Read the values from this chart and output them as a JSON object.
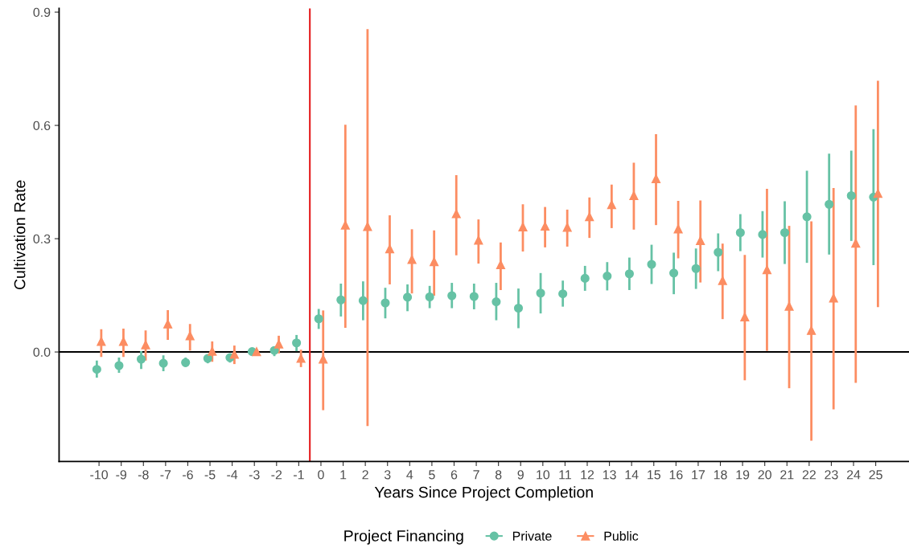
{
  "chart_data": {
    "type": "scatter",
    "xlabel": "Years Since Project Completion",
    "ylabel": "Cultivation Rate",
    "legend_title": "Project Financing",
    "legend": "bottom",
    "grid": false,
    "xlim": [
      -11.8,
      26.5
    ],
    "xticks": [
      -10,
      -9,
      -8,
      -7,
      -6,
      -5,
      -4,
      -3,
      -2,
      -1,
      0,
      1,
      2,
      3,
      4,
      5,
      6,
      7,
      8,
      9,
      10,
      11,
      12,
      13,
      14,
      15,
      16,
      17,
      18,
      19,
      20,
      21,
      22,
      23,
      24,
      25
    ],
    "ylim": [
      -0.29,
      0.91
    ],
    "yticks": [
      {
        "value": 0,
        "label": "0.0"
      },
      0.3,
      0.6,
      0.9
    ],
    "ref_lines": [
      {
        "axis": "y",
        "value": 0,
        "color": "#000000"
      },
      {
        "axis": "x",
        "value": -0.5,
        "color": "#e41a1c"
      }
    ],
    "series": [
      {
        "name": "Private",
        "color": "#66c2a5",
        "marker": "circle",
        "x": [
          -10.1,
          -9.1,
          -8.1,
          -7.1,
          -6.1,
          -5.1,
          -4.1,
          -3.1,
          -2.1,
          -1.1,
          -0.1,
          0.9,
          1.9,
          2.9,
          3.9,
          4.9,
          5.9,
          6.9,
          7.9,
          8.9,
          9.9,
          10.9,
          11.9,
          12.9,
          13.9,
          14.9,
          15.9,
          16.9,
          17.9,
          18.9,
          19.9,
          20.9,
          21.9,
          22.9,
          23.9,
          24.9
        ],
        "values": [
          -0.046,
          -0.036,
          -0.019,
          -0.03,
          -0.028,
          -0.017,
          -0.015,
          0.001,
          0.004,
          0.024,
          0.088,
          0.138,
          0.136,
          0.13,
          0.145,
          0.146,
          0.149,
          0.147,
          0.133,
          0.116,
          0.156,
          0.154,
          0.195,
          0.201,
          0.207,
          0.232,
          0.209,
          0.221,
          0.264,
          0.316,
          0.311,
          0.316,
          0.358,
          0.391,
          0.414,
          0.41
        ],
        "errors": [
          [
            -0.068,
            -0.023
          ],
          [
            -0.055,
            -0.015
          ],
          [
            -0.045,
            0.002
          ],
          [
            -0.051,
            -0.009
          ],
          [
            -0.04,
            -0.015
          ],
          [
            -0.03,
            -0.006
          ],
          [
            -0.028,
            -0.004
          ],
          null,
          [
            -0.011,
            0.015
          ],
          [
            0.002,
            0.045
          ],
          [
            0.061,
            0.114
          ],
          [
            0.094,
            0.181
          ],
          [
            0.084,
            0.187
          ],
          [
            0.089,
            0.17
          ],
          [
            0.108,
            0.179
          ],
          [
            0.116,
            0.175
          ],
          [
            0.116,
            0.183
          ],
          [
            0.113,
            0.181
          ],
          [
            0.084,
            0.183
          ],
          [
            0.063,
            0.168
          ],
          [
            0.102,
            0.209
          ],
          [
            0.12,
            0.189
          ],
          [
            0.162,
            0.228
          ],
          [
            0.163,
            0.238
          ],
          [
            0.164,
            0.25
          ],
          [
            0.18,
            0.284
          ],
          [
            0.153,
            0.263
          ],
          [
            0.167,
            0.274
          ],
          [
            0.214,
            0.314
          ],
          [
            0.267,
            0.365
          ],
          [
            0.25,
            0.373
          ],
          [
            0.233,
            0.399
          ],
          [
            0.236,
            0.48
          ],
          [
            0.258,
            0.525
          ],
          [
            0.294,
            0.533
          ],
          [
            0.23,
            0.59
          ]
        ]
      },
      {
        "name": "Public",
        "color": "#fc8d62",
        "marker": "triangle",
        "x": [
          -9.9,
          -8.9,
          -7.9,
          -6.9,
          -5.9,
          -4.9,
          -3.9,
          -2.9,
          -1.9,
          -0.9,
          0.1,
          1.1,
          2.1,
          3.1,
          4.1,
          5.1,
          6.1,
          7.1,
          8.1,
          9.1,
          10.1,
          11.1,
          12.1,
          13.1,
          14.1,
          15.1,
          16.1,
          17.1,
          18.1,
          19.1,
          20.1,
          21.1,
          22.1,
          23.1,
          24.1,
          25.1
        ],
        "values": [
          0.028,
          0.028,
          0.019,
          0.074,
          0.043,
          0.002,
          -0.006,
          0.001,
          0.021,
          -0.017,
          -0.019,
          0.336,
          0.332,
          0.273,
          0.245,
          0.239,
          0.366,
          0.296,
          0.231,
          0.331,
          0.333,
          0.33,
          0.358,
          0.39,
          0.414,
          0.459,
          0.326,
          0.295,
          0.189,
          0.093,
          0.218,
          0.121,
          0.057,
          0.143,
          0.288,
          0.42
        ],
        "errors": [
          [
            -0.013,
            0.06
          ],
          [
            -0.013,
            0.062
          ],
          [
            -0.023,
            0.057
          ],
          [
            0.032,
            0.111
          ],
          [
            0.004,
            0.074
          ],
          [
            -0.026,
            0.028
          ],
          [
            -0.032,
            0.017
          ],
          null,
          [
            -0.004,
            0.043
          ],
          [
            -0.04,
            0.006
          ],
          [
            -0.154,
            0.11
          ],
          [
            0.064,
            0.602
          ],
          [
            -0.196,
            0.855
          ],
          [
            0.179,
            0.362
          ],
          [
            0.155,
            0.325
          ],
          [
            0.149,
            0.322
          ],
          [
            0.256,
            0.468
          ],
          [
            0.234,
            0.351
          ],
          [
            0.164,
            0.29
          ],
          [
            0.266,
            0.391
          ],
          [
            0.277,
            0.384
          ],
          [
            0.279,
            0.377
          ],
          [
            0.302,
            0.409
          ],
          [
            0.328,
            0.443
          ],
          [
            0.324,
            0.501
          ],
          [
            0.336,
            0.577
          ],
          [
            0.248,
            0.4
          ],
          [
            0.184,
            0.401
          ],
          [
            0.087,
            0.287
          ],
          [
            -0.075,
            0.257
          ],
          [
            0.003,
            0.432
          ],
          [
            -0.096,
            0.334
          ],
          [
            -0.235,
            0.346
          ],
          [
            -0.152,
            0.434
          ],
          [
            -0.082,
            0.653
          ],
          [
            0.119,
            0.718
          ]
        ]
      }
    ]
  }
}
